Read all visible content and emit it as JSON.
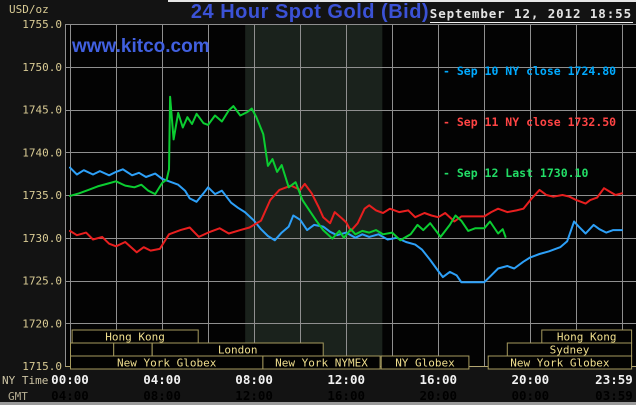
{
  "header": {
    "unit_label": "USD/oz",
    "title": "24 Hour Spot Gold (Bid)",
    "watermark": "www.kitco.com",
    "datetime": "September 12, 2012 18:55",
    "legend": [
      {
        "label": "- Sep 10 NY close 1724.80",
        "color": "#00aaff"
      },
      {
        "label": "- Sep 11 NY close 1732.50",
        "color": "#ff4444"
      },
      {
        "label": "- Sep 12 Last 1730.10",
        "color": "#22dd66"
      }
    ]
  },
  "axes": {
    "ny_time_label": "NY Time",
    "gmt_label": "GMT",
    "y_ticks": [
      {
        "v": 1755,
        "label": "1755.0"
      },
      {
        "v": 1750,
        "label": "1750.0"
      },
      {
        "v": 1745,
        "label": "1745.0"
      },
      {
        "v": 1740,
        "label": "1740.0"
      },
      {
        "v": 1735,
        "label": "1735.0"
      },
      {
        "v": 1730,
        "label": "1730.0"
      },
      {
        "v": 1725,
        "label": "1725.0"
      },
      {
        "v": 1720,
        "label": "1720.0"
      },
      {
        "v": 1715,
        "label": "1715.0"
      }
    ],
    "ny_ticks": [
      {
        "t": 0,
        "label": "00:00"
      },
      {
        "t": 4,
        "label": "04:00"
      },
      {
        "t": 8,
        "label": "08:00"
      },
      {
        "t": 12,
        "label": "12:00"
      },
      {
        "t": 16,
        "label": "16:00"
      },
      {
        "t": 20,
        "label": "20:00"
      },
      {
        "t": 23.983,
        "label": "23:59"
      }
    ],
    "gmt_ticks": [
      {
        "t": 0,
        "label": "04:00"
      },
      {
        "t": 4,
        "label": "08:00"
      },
      {
        "t": 8,
        "label": "12:00"
      },
      {
        "t": 12,
        "label": "16:00"
      },
      {
        "t": 16,
        "label": "20:00"
      },
      {
        "t": 20,
        "label": "00:00"
      },
      {
        "t": 23.983,
        "label": "03:59"
      }
    ]
  },
  "chart_data": {
    "type": "line",
    "title": "24 Hour Spot Gold (Bid)",
    "xlabel": "NY Time (hours)",
    "ylabel": "USD/oz",
    "xlim": [
      0,
      23.983
    ],
    "ylim": [
      1715,
      1755
    ],
    "grid_x_step_hours": 2,
    "grid_y_step": 5,
    "highlight_band_hours": [
      7.61,
      13.57
    ],
    "colors": {
      "plot_bg": "#030303",
      "band": "#1a221c",
      "grid": "#8f8f8f",
      "axis": "#b3a671",
      "y_tick_text": "#d9cb94",
      "ny_tick_text": "#f2f2f2",
      "gmt_tick_text": "#4b4b4b",
      "session_border": "#a59a5e",
      "session_fill": "#020202",
      "session_text": "#f0df8e"
    },
    "series": [
      {
        "name": "Sep 10",
        "legend": "Sep 10 NY close 1724.80",
        "close": 1724.8,
        "color": "#2da0f8",
        "points": [
          [
            0,
            1738.2
          ],
          [
            0.3,
            1737.4
          ],
          [
            0.6,
            1737.9
          ],
          [
            1,
            1737.4
          ],
          [
            1.3,
            1737.8
          ],
          [
            1.7,
            1737.3
          ],
          [
            2,
            1737.7
          ],
          [
            2.3,
            1738.0
          ],
          [
            2.7,
            1737.3
          ],
          [
            3,
            1737.6
          ],
          [
            3.3,
            1737.1
          ],
          [
            3.7,
            1737.5
          ],
          [
            4,
            1736.9
          ],
          [
            4.3,
            1736.6
          ],
          [
            4.7,
            1736.2
          ],
          [
            5,
            1735.5
          ],
          [
            5.2,
            1734.6
          ],
          [
            5.5,
            1734.2
          ],
          [
            5.8,
            1735.2
          ],
          [
            6,
            1735.9
          ],
          [
            6.3,
            1735.1
          ],
          [
            6.6,
            1735.5
          ],
          [
            7,
            1734.1
          ],
          [
            7.3,
            1733.5
          ],
          [
            7.6,
            1733.0
          ],
          [
            8,
            1732.0
          ],
          [
            8.3,
            1731.0
          ],
          [
            8.6,
            1730.2
          ],
          [
            8.9,
            1729.7
          ],
          [
            9.2,
            1730.6
          ],
          [
            9.5,
            1731.3
          ],
          [
            9.7,
            1732.6
          ],
          [
            10,
            1732.1
          ],
          [
            10.3,
            1730.9
          ],
          [
            10.6,
            1731.5
          ],
          [
            11,
            1731.3
          ],
          [
            11.3,
            1730.7
          ],
          [
            11.6,
            1730.3
          ],
          [
            12,
            1730.6
          ],
          [
            12.4,
            1730.0
          ],
          [
            12.7,
            1730.4
          ],
          [
            13,
            1730.1
          ],
          [
            13.4,
            1730.4
          ],
          [
            13.8,
            1729.8
          ],
          [
            14.2,
            1730.0
          ],
          [
            14.6,
            1729.5
          ],
          [
            15,
            1729.2
          ],
          [
            15.3,
            1728.6
          ],
          [
            15.65,
            1727.4
          ],
          [
            16,
            1726.1
          ],
          [
            16.2,
            1725.4
          ],
          [
            16.5,
            1726.0
          ],
          [
            16.8,
            1725.6
          ],
          [
            17,
            1724.8
          ],
          [
            18,
            1724.8
          ],
          [
            18.3,
            1725.6
          ],
          [
            18.6,
            1726.4
          ],
          [
            19,
            1726.7
          ],
          [
            19.3,
            1726.4
          ],
          [
            19.7,
            1727.2
          ],
          [
            20,
            1727.7
          ],
          [
            20.4,
            1728.1
          ],
          [
            20.8,
            1728.4
          ],
          [
            21.3,
            1728.9
          ],
          [
            21.6,
            1729.6
          ],
          [
            21.9,
            1731.9
          ],
          [
            22.1,
            1731.3
          ],
          [
            22.4,
            1730.5
          ],
          [
            22.75,
            1731.5
          ],
          [
            23,
            1731.0
          ],
          [
            23.3,
            1730.6
          ],
          [
            23.6,
            1730.9
          ],
          [
            23.98,
            1730.9
          ]
        ]
      },
      {
        "name": "Sep 11",
        "legend": "Sep 11 NY close 1732.50",
        "close": 1732.5,
        "color": "#e81f1f",
        "points": [
          [
            0,
            1730.8
          ],
          [
            0.3,
            1730.3
          ],
          [
            0.7,
            1730.6
          ],
          [
            1,
            1729.8
          ],
          [
            1.4,
            1730.1
          ],
          [
            1.7,
            1729.3
          ],
          [
            2,
            1729.0
          ],
          [
            2.4,
            1729.5
          ],
          [
            2.9,
            1728.3
          ],
          [
            3.2,
            1728.9
          ],
          [
            3.5,
            1728.5
          ],
          [
            3.9,
            1728.7
          ],
          [
            4.3,
            1730.4
          ],
          [
            4.8,
            1730.9
          ],
          [
            5.2,
            1731.2
          ],
          [
            5.6,
            1730.1
          ],
          [
            6,
            1730.6
          ],
          [
            6.5,
            1731.1
          ],
          [
            6.9,
            1730.5
          ],
          [
            7.4,
            1730.9
          ],
          [
            7.8,
            1731.2
          ],
          [
            8.3,
            1732.0
          ],
          [
            8.7,
            1734.4
          ],
          [
            9.1,
            1735.6
          ],
          [
            9.6,
            1736.1
          ],
          [
            10,
            1735.6
          ],
          [
            10.2,
            1736.3
          ],
          [
            10.5,
            1735.2
          ],
          [
            10.8,
            1733.6
          ],
          [
            11,
            1732.4
          ],
          [
            11.3,
            1731.7
          ],
          [
            11.5,
            1733.0
          ],
          [
            11.8,
            1732.3
          ],
          [
            12,
            1731.8
          ],
          [
            12.2,
            1730.8
          ],
          [
            12.5,
            1731.7
          ],
          [
            12.8,
            1733.4
          ],
          [
            13,
            1733.8
          ],
          [
            13.3,
            1733.2
          ],
          [
            13.6,
            1732.9
          ],
          [
            13.9,
            1733.4
          ],
          [
            14.3,
            1733.0
          ],
          [
            14.7,
            1733.2
          ],
          [
            15,
            1732.4
          ],
          [
            15.4,
            1732.9
          ],
          [
            15.7,
            1732.6
          ],
          [
            16,
            1732.4
          ],
          [
            16.3,
            1732.9
          ],
          [
            16.7,
            1731.9
          ],
          [
            17,
            1732.5
          ],
          [
            18,
            1732.5
          ],
          [
            18.3,
            1733.0
          ],
          [
            18.6,
            1733.4
          ],
          [
            19,
            1733.0
          ],
          [
            19.4,
            1733.2
          ],
          [
            19.7,
            1733.4
          ],
          [
            20,
            1734.4
          ],
          [
            20.4,
            1735.6
          ],
          [
            20.7,
            1735.0
          ],
          [
            21,
            1734.8
          ],
          [
            21.4,
            1735.0
          ],
          [
            21.7,
            1734.8
          ],
          [
            22,
            1734.4
          ],
          [
            22.4,
            1734.0
          ],
          [
            22.6,
            1734.4
          ],
          [
            22.9,
            1734.7
          ],
          [
            23.2,
            1735.8
          ],
          [
            23.45,
            1735.4
          ],
          [
            23.7,
            1735.0
          ],
          [
            23.98,
            1735.2
          ]
        ]
      },
      {
        "name": "Sep 12",
        "legend": "Sep 12 Last 1730.10",
        "last": 1730.1,
        "color": "#0bcd31",
        "points": [
          [
            0,
            1734.9
          ],
          [
            0.4,
            1735.2
          ],
          [
            0.8,
            1735.6
          ],
          [
            1.2,
            1736.0
          ],
          [
            1.6,
            1736.3
          ],
          [
            2,
            1736.6
          ],
          [
            2.4,
            1736.1
          ],
          [
            2.8,
            1735.9
          ],
          [
            3.1,
            1736.2
          ],
          [
            3.4,
            1735.5
          ],
          [
            3.7,
            1735.1
          ],
          [
            4,
            1736.4
          ],
          [
            4.2,
            1736.8
          ],
          [
            4.3,
            1738.0
          ],
          [
            4.35,
            1746.5
          ],
          [
            4.5,
            1741.5
          ],
          [
            4.7,
            1744.6
          ],
          [
            4.9,
            1742.9
          ],
          [
            5.1,
            1744.1
          ],
          [
            5.3,
            1743.3
          ],
          [
            5.5,
            1744.5
          ],
          [
            5.8,
            1743.4
          ],
          [
            6,
            1743.2
          ],
          [
            6.3,
            1744.3
          ],
          [
            6.6,
            1743.6
          ],
          [
            6.9,
            1744.9
          ],
          [
            7.1,
            1745.4
          ],
          [
            7.4,
            1744.3
          ],
          [
            7.7,
            1744.7
          ],
          [
            7.9,
            1745.1
          ],
          [
            8.1,
            1744.1
          ],
          [
            8.4,
            1742.1
          ],
          [
            8.6,
            1738.4
          ],
          [
            8.8,
            1739.2
          ],
          [
            9,
            1737.7
          ],
          [
            9.2,
            1738.5
          ],
          [
            9.5,
            1735.9
          ],
          [
            9.8,
            1736.5
          ],
          [
            10.1,
            1734.4
          ],
          [
            10.4,
            1733.2
          ],
          [
            10.7,
            1732.0
          ],
          [
            11,
            1730.9
          ],
          [
            11.4,
            1729.9
          ],
          [
            11.7,
            1730.8
          ],
          [
            11.9,
            1730.0
          ],
          [
            12.2,
            1731.0
          ],
          [
            12.4,
            1730.4
          ],
          [
            12.7,
            1730.8
          ],
          [
            13,
            1730.6
          ],
          [
            13.3,
            1730.9
          ],
          [
            13.6,
            1730.4
          ],
          [
            14,
            1730.6
          ],
          [
            14.35,
            1729.7
          ],
          [
            14.8,
            1730.4
          ],
          [
            15.1,
            1731.5
          ],
          [
            15.35,
            1730.9
          ],
          [
            15.65,
            1731.7
          ],
          [
            16.1,
            1730.1
          ],
          [
            16.5,
            1731.5
          ],
          [
            16.75,
            1732.6
          ],
          [
            17,
            1732.0
          ],
          [
            17.3,
            1730.8
          ],
          [
            17.6,
            1731.1
          ],
          [
            18,
            1731.1
          ],
          [
            18.25,
            1731.9
          ],
          [
            18.6,
            1730.5
          ],
          [
            18.8,
            1731.0
          ],
          [
            18.92,
            1730.1
          ]
        ]
      }
    ],
    "sessions": [
      {
        "row": 0,
        "label": "Hong Kong",
        "start": 0.09,
        "end": 5.57
      },
      {
        "row": 0,
        "label": "Hong Kong",
        "start": 20.5,
        "end": 24.4
      },
      {
        "row": 1,
        "label": "",
        "start": 0.02,
        "end": 1.9
      },
      {
        "row": 1,
        "label": "",
        "start": 1.9,
        "end": 3.57
      },
      {
        "row": 1,
        "label": "London",
        "start": 3.57,
        "end": 11.0
      },
      {
        "row": 1,
        "label": "Sydney",
        "start": 19.0,
        "end": 24.4
      },
      {
        "row": 2,
        "label": "New York Globex",
        "start": 0.02,
        "end": 8.38
      },
      {
        "row": 2,
        "label": "New York NYMEX",
        "start": 8.38,
        "end": 13.47
      },
      {
        "row": 2,
        "label": "NY Globex",
        "start": 13.52,
        "end": 17.33
      },
      {
        "row": 2,
        "label": "New York Globex",
        "start": 18.17,
        "end": 24.4
      }
    ]
  }
}
